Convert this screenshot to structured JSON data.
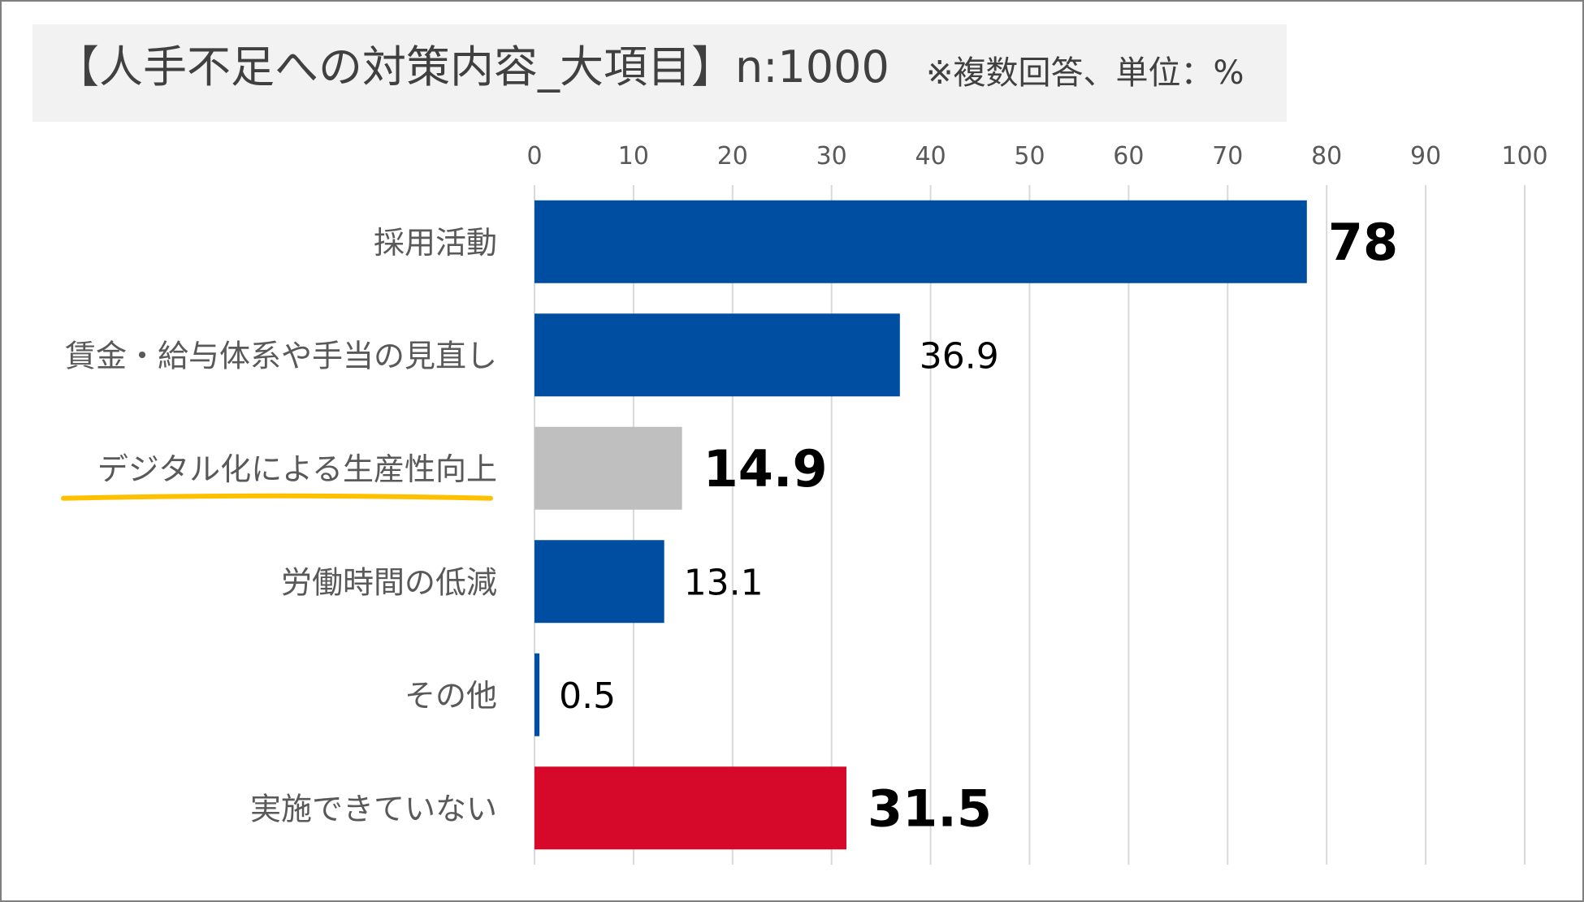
{
  "title": "【人手不足への対策内容_大項目】n:1000",
  "note": "※複数回答、単位：%",
  "colors": {
    "primary": "#004ea2",
    "highlight": "#bfbfbf",
    "negative": "#d6092b",
    "underline": "#ffc000",
    "grid": "#d9d9d9",
    "text": "#404040"
  },
  "chart_data": {
    "type": "bar",
    "orientation": "horizontal",
    "xlim": [
      0,
      100
    ],
    "xticks": [
      "0",
      "10",
      "20",
      "30",
      "40",
      "50",
      "60",
      "70",
      "80",
      "90",
      "100"
    ],
    "grid": true,
    "categories": [
      "採用活動",
      "賃金・給与体系や手当の見直し",
      "デジタル化による生産性向上",
      "労働時間の低減",
      "その他",
      "実施できていない"
    ],
    "values": [
      78,
      36.9,
      14.9,
      13.1,
      0.5,
      31.5
    ],
    "value_labels": [
      "78",
      "36.9",
      "14.9",
      "13.1",
      "0.5",
      "31.5"
    ],
    "bar_colors": [
      "primary",
      "primary",
      "highlight",
      "primary",
      "primary",
      "negative"
    ],
    "bold_labels": [
      true,
      false,
      true,
      false,
      false,
      true
    ],
    "underlined_category": 2
  }
}
